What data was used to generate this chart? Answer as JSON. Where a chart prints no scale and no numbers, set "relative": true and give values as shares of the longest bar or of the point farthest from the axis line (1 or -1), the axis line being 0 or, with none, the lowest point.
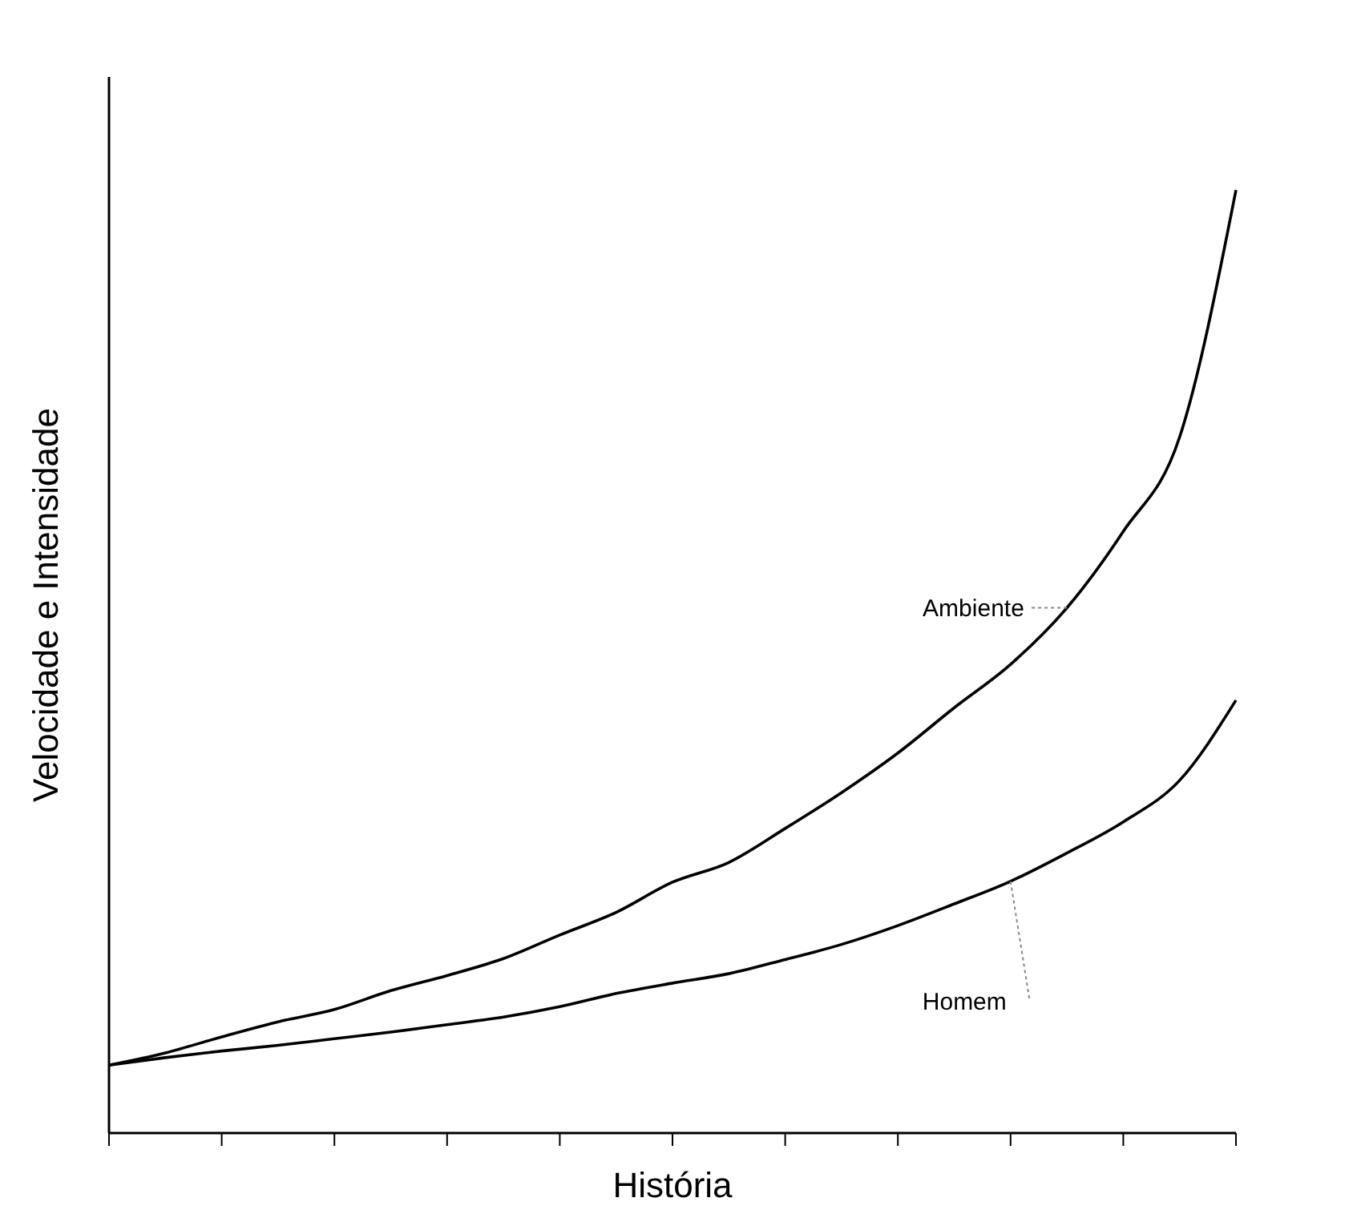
{
  "chart_data": {
    "type": "line",
    "relative": true,
    "xlabel": "História",
    "ylabel": "Velocidade e Intensidade",
    "categories": [
      null,
      null,
      null,
      null,
      null,
      null,
      null,
      null,
      null,
      null,
      null,
      null,
      null,
      null,
      null,
      null,
      null,
      null,
      null,
      null,
      null
    ],
    "marker": "none",
    "line_style": "solid",
    "grid": false,
    "legend": false,
    "series": [
      {
        "name": "Ambiente",
        "color": "#000000",
        "values": [
          0.072,
          0.085,
          0.102,
          0.118,
          0.131,
          0.151,
          0.167,
          0.185,
          0.21,
          0.234,
          0.266,
          0.287,
          0.323,
          0.361,
          0.403,
          0.451,
          0.497,
          0.557,
          0.638,
          0.738,
          1
        ]
      },
      {
        "name": "Homem",
        "color": "#000000",
        "values": [
          0.072,
          0.08,
          0.087,
          0.093,
          0.1,
          0.107,
          0.115,
          0.123,
          0.134,
          0.148,
          0.159,
          0.169,
          0.184,
          0.2,
          0.22,
          0.243,
          0.267,
          0.297,
          0.33,
          0.374,
          0.459
        ]
      }
    ]
  }
}
